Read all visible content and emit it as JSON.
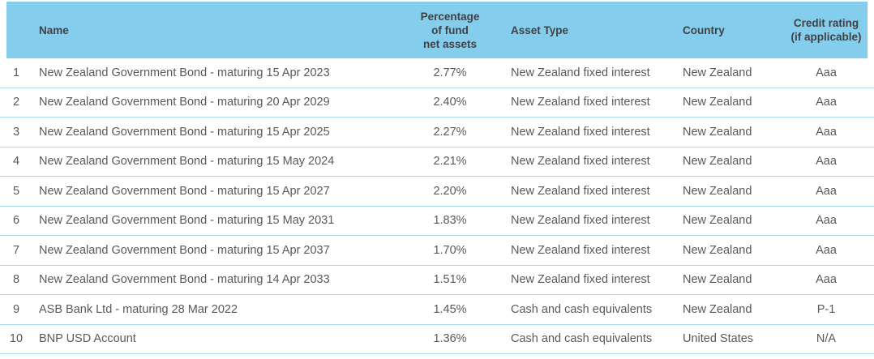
{
  "table": {
    "header": {
      "num": "",
      "name": "Name",
      "pct_lines": [
        "Percentage",
        "of fund",
        "net assets"
      ],
      "asset_type": "Asset Type",
      "country": "Country",
      "credit_lines": [
        "Credit rating",
        "(if applicable)"
      ]
    },
    "rows": [
      {
        "num": "1",
        "name": "New Zealand Government Bond - maturing 15 Apr 2023",
        "pct": "2.77%",
        "asset_type": "New Zealand fixed interest",
        "country": "New Zealand",
        "credit": "Aaa"
      },
      {
        "num": "2",
        "name": "New Zealand Government Bond - maturing 20 Apr 2029",
        "pct": "2.40%",
        "asset_type": "New Zealand fixed interest",
        "country": "New Zealand",
        "credit": "Aaa"
      },
      {
        "num": "3",
        "name": "New Zealand Government Bond - maturing 15 Apr 2025",
        "pct": "2.27%",
        "asset_type": "New Zealand fixed interest",
        "country": "New Zealand",
        "credit": "Aaa"
      },
      {
        "num": "4",
        "name": "New Zealand Government Bond - maturing 15 May 2024",
        "pct": "2.21%",
        "asset_type": "New Zealand fixed interest",
        "country": "New Zealand",
        "credit": "Aaa"
      },
      {
        "num": "5",
        "name": "New Zealand Government Bond - maturing 15 Apr 2027",
        "pct": "2.20%",
        "asset_type": "New Zealand fixed interest",
        "country": "New Zealand",
        "credit": "Aaa"
      },
      {
        "num": "6",
        "name": "New Zealand Government Bond - maturing 15 May 2031",
        "pct": "1.83%",
        "asset_type": "New Zealand fixed interest",
        "country": "New Zealand",
        "credit": "Aaa"
      },
      {
        "num": "7",
        "name": "New Zealand Government Bond - maturing 15 Apr 2037",
        "pct": "1.70%",
        "asset_type": "New Zealand fixed interest",
        "country": "New Zealand",
        "credit": "Aaa"
      },
      {
        "num": "8",
        "name": "New Zealand Government Bond - maturing 14 Apr 2033",
        "pct": "1.51%",
        "asset_type": "New Zealand fixed interest",
        "country": "New Zealand",
        "credit": "Aaa"
      },
      {
        "num": "9",
        "name": "ASB Bank Ltd - maturing 28 Mar 2022",
        "pct": "1.45%",
        "asset_type": "Cash and cash equivalents",
        "country": "New Zealand",
        "credit": "P-1"
      },
      {
        "num": "10",
        "name": "BNP USD Account",
        "pct": "1.36%",
        "asset_type": "Cash and cash equivalents",
        "country": "United States",
        "credit": "N/A"
      }
    ],
    "colors": {
      "header_bg": "#85CDEC",
      "divider": "#A9DCF3",
      "header_text": "#414143",
      "body_text": "#58595B"
    }
  }
}
